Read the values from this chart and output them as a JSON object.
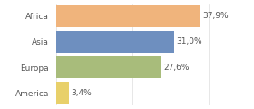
{
  "categories": [
    "Africa",
    "Asia",
    "Europa",
    "America"
  ],
  "values": [
    37.9,
    31.0,
    27.6,
    3.4
  ],
  "labels": [
    "37,9%",
    "31,0%",
    "27,6%",
    "3,4%"
  ],
  "bar_colors": [
    "#f0b47c",
    "#6e8fbf",
    "#a8bc7b",
    "#e8d06a"
  ],
  "background_color": "#ffffff",
  "xlim": [
    0,
    44
  ],
  "label_fontsize": 6.5,
  "cat_fontsize": 6.5,
  "bar_height": 0.85
}
